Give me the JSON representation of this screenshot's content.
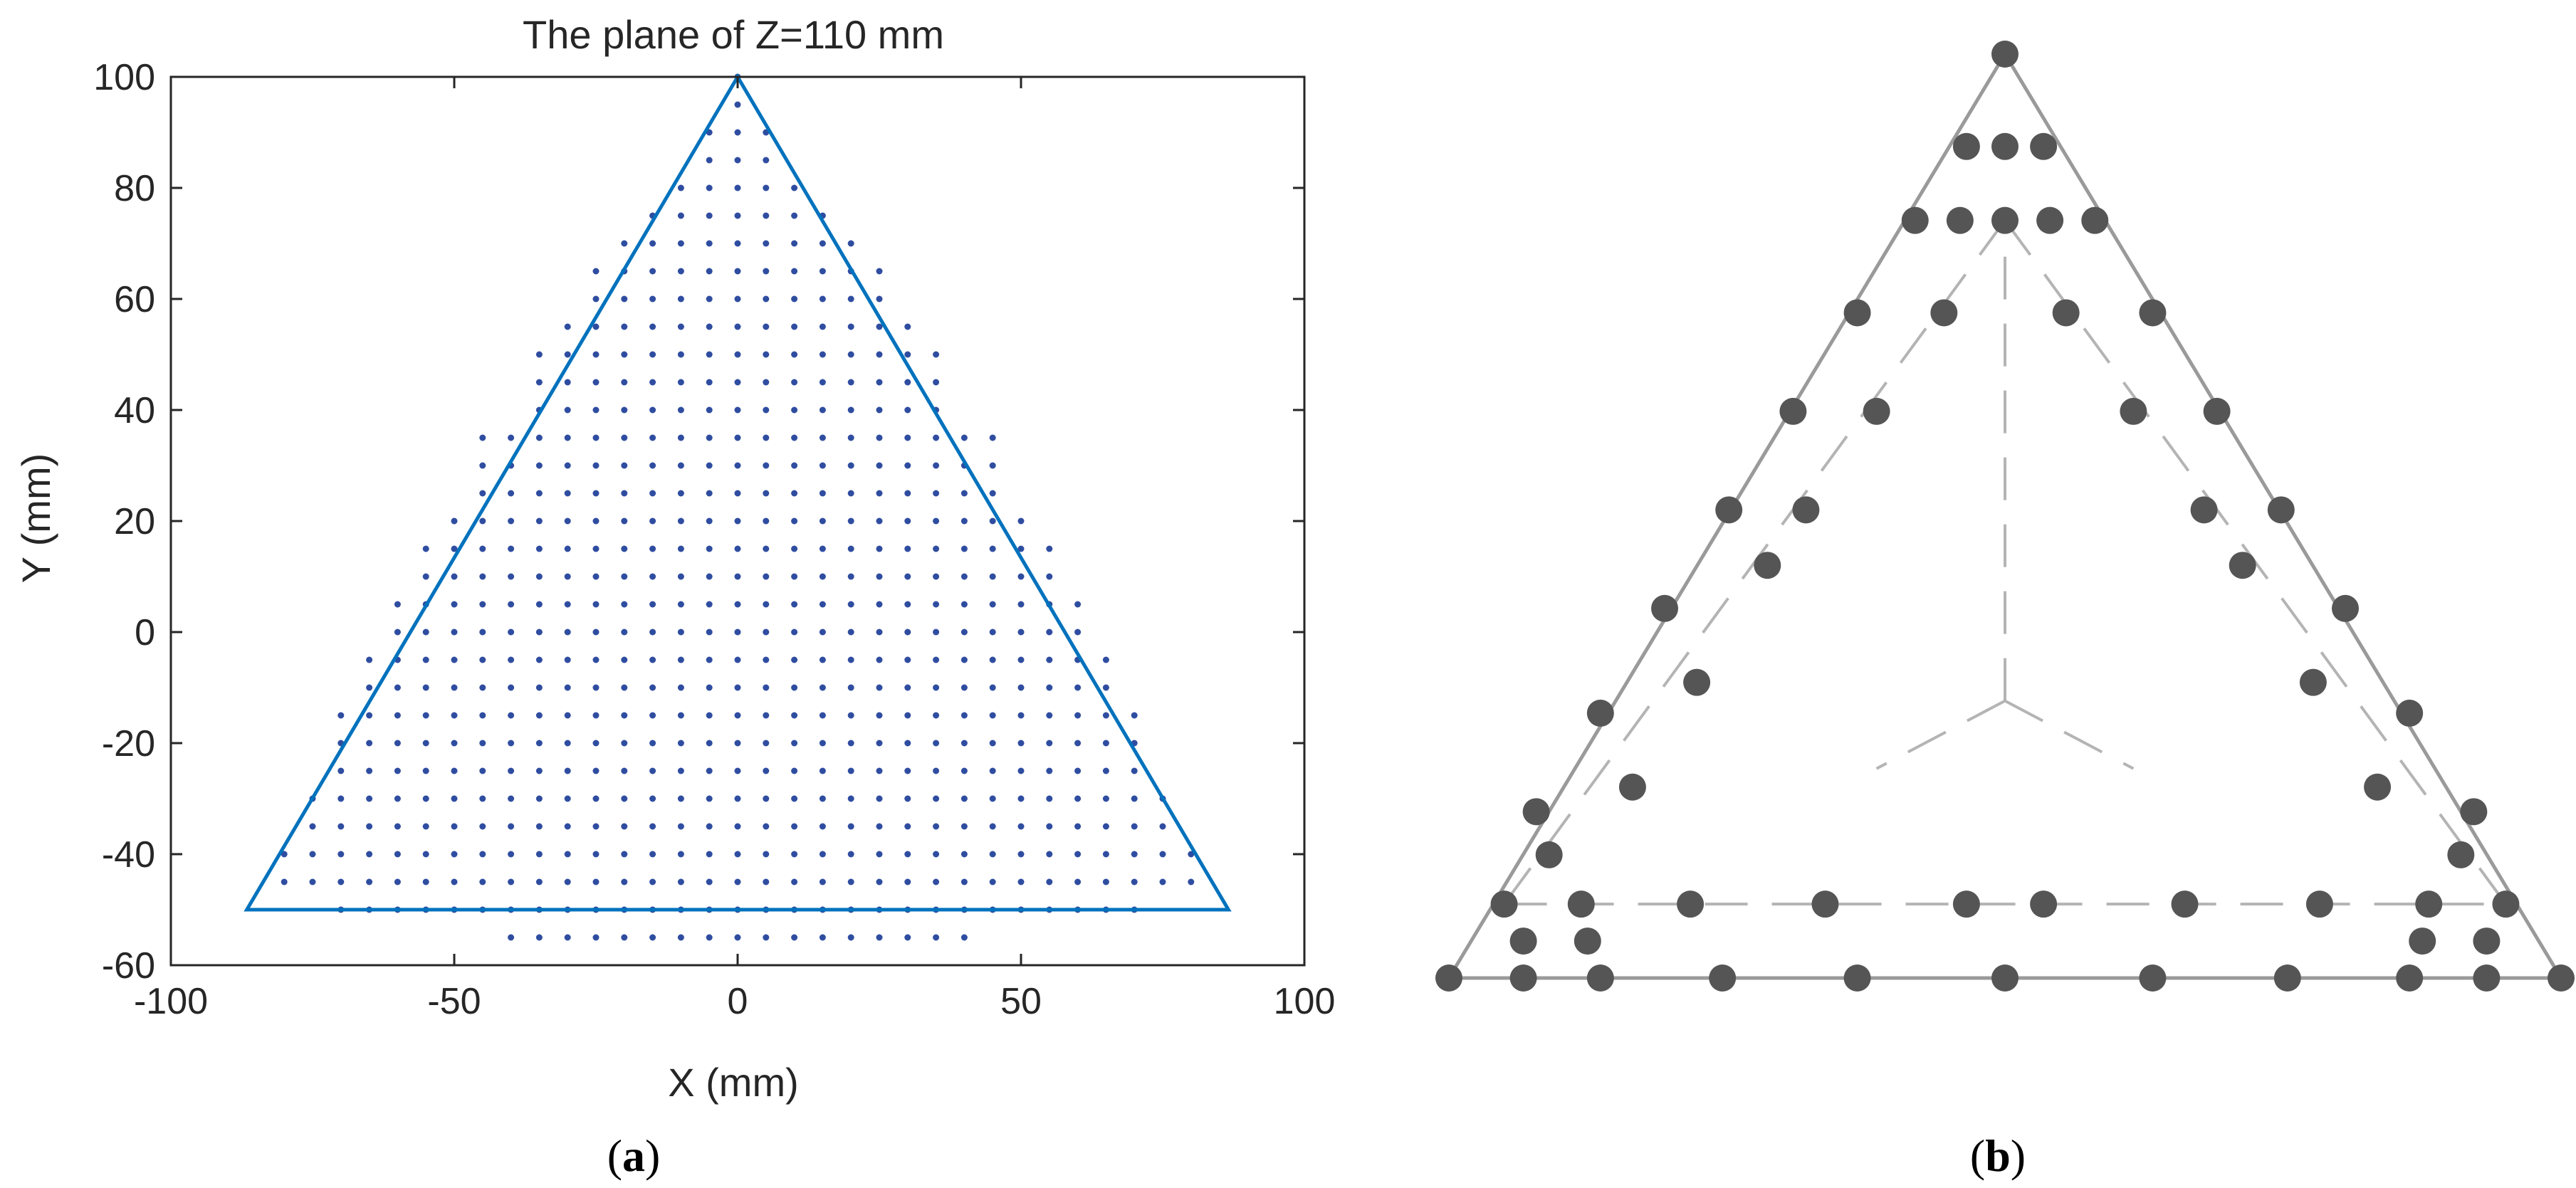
{
  "figure": {
    "panel_a_label": {
      "paren_open": "(",
      "letter": "a",
      "paren_close": ")"
    },
    "panel_b_label": {
      "paren_open": "(",
      "letter": "b",
      "paren_close": ")"
    }
  },
  "colors": {
    "triangle_line": "#0072BD",
    "grid_points": "#2F4DA0",
    "axis": "#262626",
    "panel_b_line": "#9a9a9a",
    "panel_b_points": "#555555"
  },
  "chart_data": [
    {
      "type": "scatter",
      "panel": "a",
      "title": "The plane of Z=110 mm",
      "xlabel": "X (mm)",
      "ylabel": "Y (mm)",
      "xlim": [
        -100,
        100
      ],
      "ylim": [
        -60,
        100
      ],
      "xticks": [
        -100,
        -50,
        0,
        50,
        100
      ],
      "yticks": [
        -60,
        -40,
        -20,
        0,
        20,
        40,
        60,
        80,
        100
      ],
      "grid": false,
      "triangle_vertices": [
        [
          0,
          100
        ],
        [
          -86.6,
          -50
        ],
        [
          86.6,
          -50
        ]
      ],
      "points_grid": {
        "spacing": 5,
        "rows": [
          {
            "y": 100,
            "x_min": 0,
            "x_max": 0
          },
          {
            "y": 95,
            "x_min": 0,
            "x_max": 0
          },
          {
            "y": 90,
            "x_min": -5,
            "x_max": 5
          },
          {
            "y": 85,
            "x_min": -5,
            "x_max": 5
          },
          {
            "y": 80,
            "x_min": -10,
            "x_max": 10
          },
          {
            "y": 75,
            "x_min": -15,
            "x_max": 15
          },
          {
            "y": 70,
            "x_min": -20,
            "x_max": 20
          },
          {
            "y": 65,
            "x_min": -25,
            "x_max": 25
          },
          {
            "y": 60,
            "x_min": -25,
            "x_max": 25
          },
          {
            "y": 55,
            "x_min": -30,
            "x_max": 30
          },
          {
            "y": 50,
            "x_min": -35,
            "x_max": 35
          },
          {
            "y": 45,
            "x_min": -35,
            "x_max": 35
          },
          {
            "y": 40,
            "x_min": -35,
            "x_max": 35
          },
          {
            "y": 35,
            "x_min": -45,
            "x_max": 45
          },
          {
            "y": 30,
            "x_min": -45,
            "x_max": 45
          },
          {
            "y": 25,
            "x_min": -45,
            "x_max": 45
          },
          {
            "y": 20,
            "x_min": -50,
            "x_max": 50
          },
          {
            "y": 15,
            "x_min": -55,
            "x_max": 55
          },
          {
            "y": 10,
            "x_min": -55,
            "x_max": 55
          },
          {
            "y": 5,
            "x_min": -60,
            "x_max": 60
          },
          {
            "y": 0,
            "x_min": -60,
            "x_max": 60
          },
          {
            "y": -5,
            "x_min": -65,
            "x_max": 65
          },
          {
            "y": -10,
            "x_min": -65,
            "x_max": 65
          },
          {
            "y": -15,
            "x_min": -70,
            "x_max": 70
          },
          {
            "y": -20,
            "x_min": -70,
            "x_max": 70
          },
          {
            "y": -25,
            "x_min": -70,
            "x_max": 70
          },
          {
            "y": -30,
            "x_min": -75,
            "x_max": 75
          },
          {
            "y": -35,
            "x_min": -75,
            "x_max": 75
          },
          {
            "y": -40,
            "x_min": -80,
            "x_max": 80
          },
          {
            "y": -45,
            "x_min": -80,
            "x_max": 80
          },
          {
            "y": -50,
            "x_min": -70,
            "x_max": 70
          },
          {
            "y": -55,
            "x_min": -40,
            "x_max": 40
          }
        ]
      }
    },
    {
      "type": "scatter",
      "panel": "b",
      "description_free": true,
      "outer_triangle": [
        [
          0,
          1.0
        ],
        [
          -0.866,
          -0.5
        ],
        [
          0.866,
          -0.5
        ]
      ],
      "center": [
        0,
        -0.05
      ],
      "points": [
        [
          0,
          1.0
        ],
        [
          -0.06,
          0.85
        ],
        [
          0,
          0.85
        ],
        [
          0.06,
          0.85
        ],
        [
          -0.14,
          0.73
        ],
        [
          -0.07,
          0.73
        ],
        [
          0,
          0.73
        ],
        [
          0.07,
          0.73
        ],
        [
          0.14,
          0.73
        ],
        [
          -0.23,
          0.58
        ],
        [
          -0.095,
          0.58
        ],
        [
          0.095,
          0.58
        ],
        [
          0.23,
          0.58
        ],
        [
          -0.33,
          0.42
        ],
        [
          -0.2,
          0.42
        ],
        [
          0.2,
          0.42
        ],
        [
          0.33,
          0.42
        ],
        [
          -0.43,
          0.26
        ],
        [
          -0.31,
          0.26
        ],
        [
          0.31,
          0.26
        ],
        [
          0.43,
          0.26
        ],
        [
          -0.37,
          0.17
        ],
        [
          0.37,
          0.17
        ],
        [
          -0.53,
          0.1
        ],
        [
          0.53,
          0.1
        ],
        [
          -0.48,
          -0.02
        ],
        [
          0.48,
          -0.02
        ],
        [
          -0.63,
          -0.07
        ],
        [
          0.63,
          -0.07
        ],
        [
          -0.58,
          -0.19
        ],
        [
          0.58,
          -0.19
        ],
        [
          -0.73,
          -0.23
        ],
        [
          0.73,
          -0.23
        ],
        [
          -0.71,
          -0.3
        ],
        [
          0.71,
          -0.3
        ],
        [
          -0.78,
          -0.38
        ],
        [
          -0.66,
          -0.38
        ],
        [
          -0.49,
          -0.38
        ],
        [
          -0.28,
          -0.38
        ],
        [
          -0.06,
          -0.38
        ],
        [
          0.06,
          -0.38
        ],
        [
          0.28,
          -0.38
        ],
        [
          0.49,
          -0.38
        ],
        [
          0.66,
          -0.38
        ],
        [
          0.78,
          -0.38
        ],
        [
          -0.75,
          -0.44
        ],
        [
          -0.65,
          -0.44
        ],
        [
          0.65,
          -0.44
        ],
        [
          0.75,
          -0.44
        ],
        [
          -0.866,
          -0.5
        ],
        [
          -0.75,
          -0.5
        ],
        [
          -0.63,
          -0.5
        ],
        [
          -0.44,
          -0.5
        ],
        [
          -0.23,
          -0.5
        ],
        [
          0,
          -0.5
        ],
        [
          0.23,
          -0.5
        ],
        [
          0.44,
          -0.5
        ],
        [
          0.63,
          -0.5
        ],
        [
          0.75,
          -0.5
        ],
        [
          0.866,
          -0.5
        ]
      ]
    }
  ]
}
